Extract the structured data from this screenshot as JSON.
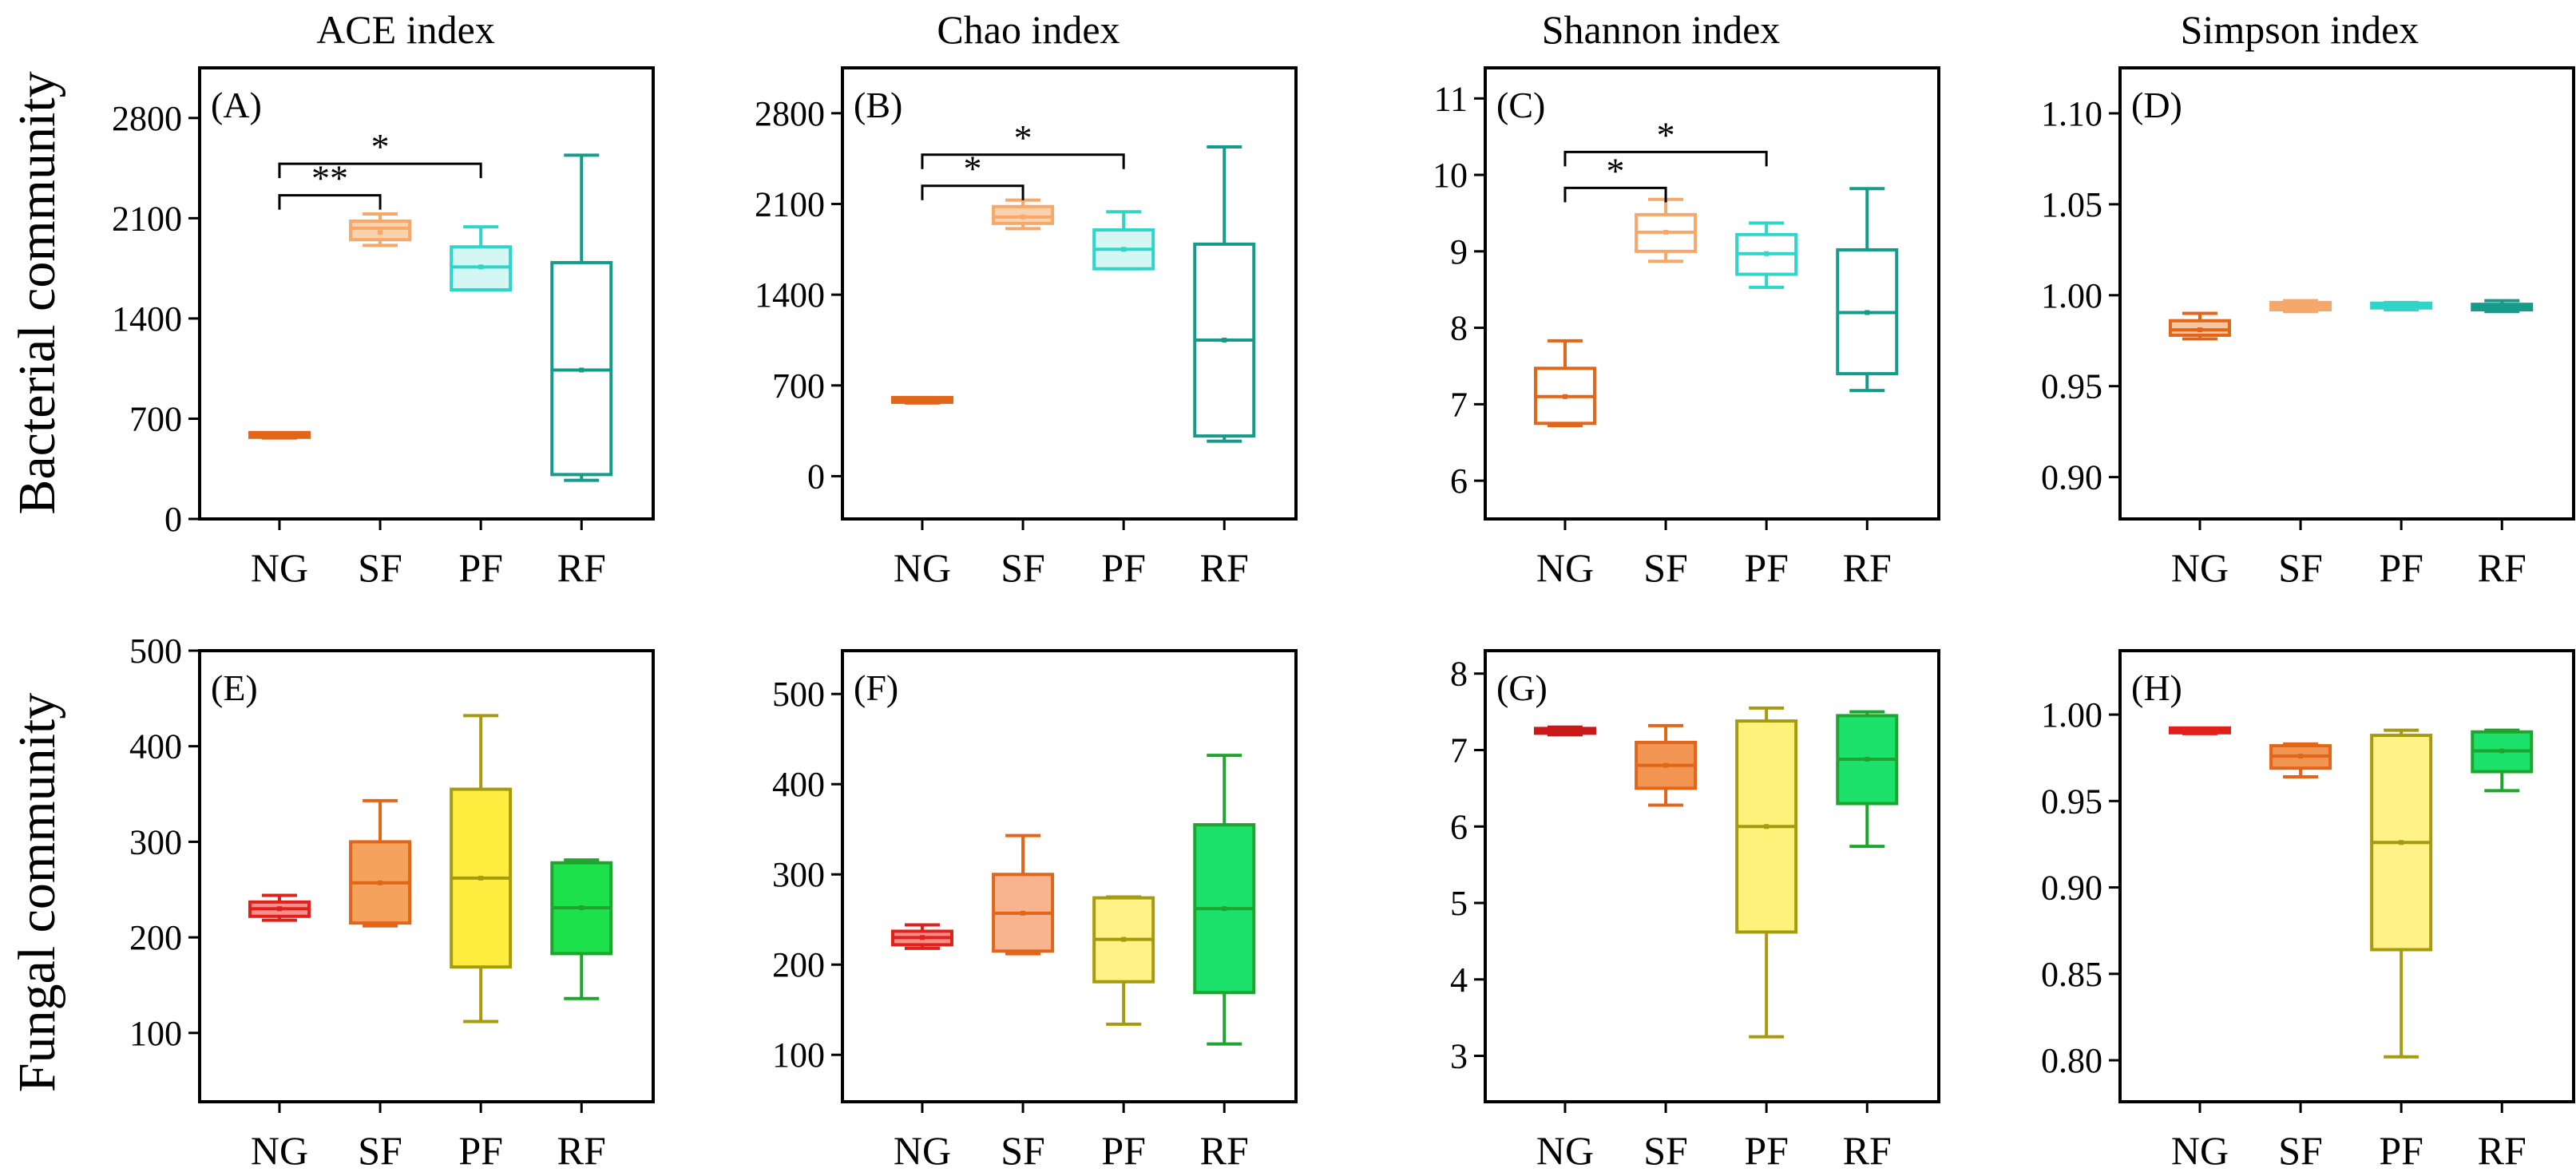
{
  "column_titles": [
    "ACE index",
    "Chao index",
    "Shannon index",
    "Simpson index"
  ],
  "row_titles": [
    "Bacterial community",
    "Fungal community"
  ],
  "chart_data": [
    {
      "id": "A",
      "label": "(A)",
      "type": "boxplot",
      "row": 0,
      "col": 0,
      "ylim": [
        0,
        3150
      ],
      "yticks": [
        0,
        700,
        1400,
        2100,
        2800
      ],
      "categories": [
        "NG",
        "SF",
        "PF",
        "RF"
      ],
      "boxes": [
        {
          "cat": "NG",
          "min": 565,
          "q1": 570,
          "median": 575,
          "q3": 585,
          "max": 590,
          "mean": 575,
          "color": "#E2661A",
          "fill": "#E2661A"
        },
        {
          "cat": "SF",
          "min": 1910,
          "q1": 1950,
          "median": 2030,
          "q3": 2080,
          "max": 2130,
          "mean": 2000,
          "color": "#F5A86A",
          "fill": "#FAD3AE"
        },
        {
          "cat": "PF",
          "min": 1600,
          "q1": 1600,
          "median": 1760,
          "q3": 1900,
          "max": 2040,
          "mean": 1760,
          "color": "#2FD5C8",
          "fill": "#D4F7F3"
        },
        {
          "cat": "RF",
          "min": 270,
          "q1": 310,
          "median": 1040,
          "q3": 1790,
          "max": 2540,
          "mean": 1040,
          "color": "#169B8B",
          "fill": "#ffffff"
        }
      ],
      "significance": [
        {
          "from": "NG",
          "to": "SF",
          "label": "**",
          "level": 2260
        },
        {
          "from": "NG",
          "to": "PF",
          "label": "*",
          "level": 2480
        }
      ]
    },
    {
      "id": "B",
      "label": "(B)",
      "type": "boxplot",
      "row": 0,
      "col": 1,
      "ylim": [
        -330,
        3150
      ],
      "yticks": [
        0,
        700,
        1400,
        2100,
        2800
      ],
      "categories": [
        "NG",
        "SF",
        "PF",
        "RF"
      ],
      "boxes": [
        {
          "cat": "NG",
          "min": 565,
          "q1": 570,
          "median": 575,
          "q3": 585,
          "max": 590,
          "mean": 575,
          "color": "#E2661A",
          "fill": "#E2661A"
        },
        {
          "cat": "SF",
          "min": 1910,
          "q1": 1950,
          "median": 2000,
          "q3": 2080,
          "max": 2130,
          "mean": 2000,
          "color": "#F5A86A",
          "fill": "#FAD3AE"
        },
        {
          "cat": "PF",
          "min": 1600,
          "q1": 1600,
          "median": 1750,
          "q3": 1900,
          "max": 2040,
          "mean": 1750,
          "color": "#2FD5C8",
          "fill": "#D4F7F3"
        },
        {
          "cat": "RF",
          "min": 270,
          "q1": 310,
          "median": 1050,
          "q3": 1790,
          "max": 2540,
          "mean": 1050,
          "color": "#169B8B",
          "fill": "#ffffff"
        }
      ],
      "significance": [
        {
          "from": "NG",
          "to": "SF",
          "label": "*",
          "level": 2240
        },
        {
          "from": "NG",
          "to": "PF",
          "label": "*",
          "level": 2480
        }
      ]
    },
    {
      "id": "C",
      "label": "(C)",
      "type": "boxplot",
      "row": 0,
      "col": 2,
      "ylim": [
        5.5,
        11.4
      ],
      "yticks": [
        6,
        7,
        8,
        9,
        10,
        11
      ],
      "categories": [
        "NG",
        "SF",
        "PF",
        "RF"
      ],
      "boxes": [
        {
          "cat": "NG",
          "min": 6.72,
          "q1": 6.75,
          "median": 7.1,
          "q3": 7.47,
          "max": 7.83,
          "mean": 7.1,
          "color": "#E2661A",
          "fill": "#ffffff"
        },
        {
          "cat": "SF",
          "min": 8.87,
          "q1": 9.0,
          "median": 9.25,
          "q3": 9.48,
          "max": 9.68,
          "mean": 9.25,
          "color": "#F5A86A",
          "fill": "#ffffff"
        },
        {
          "cat": "PF",
          "min": 8.53,
          "q1": 8.7,
          "median": 8.97,
          "q3": 9.22,
          "max": 9.37,
          "mean": 8.97,
          "color": "#2FD5C8",
          "fill": "#ffffff"
        },
        {
          "cat": "RF",
          "min": 7.18,
          "q1": 7.4,
          "median": 8.2,
          "q3": 9.02,
          "max": 9.82,
          "mean": 8.2,
          "color": "#169B8B",
          "fill": "#ffffff"
        }
      ],
      "significance": [
        {
          "from": "NG",
          "to": "SF",
          "label": "*",
          "level": 9.83
        },
        {
          "from": "NG",
          "to": "PF",
          "label": "*",
          "level": 10.3
        }
      ]
    },
    {
      "id": "D",
      "label": "(D)",
      "type": "boxplot",
      "row": 0,
      "col": 3,
      "ylim": [
        0.877,
        1.125
      ],
      "yticks": [
        0.9,
        0.95,
        1.0,
        1.05,
        1.1
      ],
      "ytick_labels": [
        "0.90",
        "0.95",
        "1.00",
        "1.05",
        "1.10"
      ],
      "categories": [
        "NG",
        "SF",
        "PF",
        "RF"
      ],
      "boxes": [
        {
          "cat": "NG",
          "min": 0.976,
          "q1": 0.978,
          "median": 0.981,
          "q3": 0.986,
          "max": 0.99,
          "mean": 0.981,
          "color": "#E2661A",
          "fill": "#F5C6A0"
        },
        {
          "cat": "SF",
          "min": 0.991,
          "q1": 0.992,
          "median": 0.994,
          "q3": 0.996,
          "max": 0.997,
          "mean": 0.994,
          "color": "#F5A86A",
          "fill": "#F5A86A"
        },
        {
          "cat": "PF",
          "min": 0.992,
          "q1": 0.993,
          "median": 0.994,
          "q3": 0.995,
          "max": 0.996,
          "mean": 0.994,
          "color": "#2FD5C8",
          "fill": "#2FD5C8"
        },
        {
          "cat": "RF",
          "min": 0.991,
          "q1": 0.992,
          "median": 0.993,
          "q3": 0.995,
          "max": 0.997,
          "mean": 0.993,
          "color": "#169B8B",
          "fill": "#169B8B"
        }
      ],
      "significance": []
    },
    {
      "id": "E",
      "label": "(E)",
      "type": "boxplot",
      "row": 1,
      "col": 0,
      "ylim": [
        28,
        500
      ],
      "yticks": [
        100,
        200,
        300,
        400,
        500
      ],
      "categories": [
        "NG",
        "SF",
        "PF",
        "RF"
      ],
      "boxes": [
        {
          "cat": "NG",
          "min": 218,
          "q1": 222,
          "median": 230,
          "q3": 237,
          "max": 244,
          "mean": 230,
          "color": "#E0201B",
          "fill": "#F7908D"
        },
        {
          "cat": "SF",
          "min": 212,
          "q1": 215,
          "median": 257,
          "q3": 300,
          "max": 343,
          "mean": 257,
          "color": "#E2661A",
          "fill": "#F5A25C"
        },
        {
          "cat": "PF",
          "min": 112,
          "q1": 169,
          "median": 262,
          "q3": 355,
          "max": 432,
          "mean": 262,
          "color": "#A69B0E",
          "fill": "#FFEE40"
        },
        {
          "cat": "RF",
          "min": 136,
          "q1": 183,
          "median": 231,
          "q3": 278,
          "max": 281,
          "mean": 231,
          "color": "#1FA52F",
          "fill": "#1CE14A"
        }
      ],
      "significance": []
    },
    {
      "id": "F",
      "label": "(F)",
      "type": "boxplot",
      "row": 1,
      "col": 1,
      "ylim": [
        48,
        548
      ],
      "yticks": [
        100,
        200,
        300,
        400,
        500
      ],
      "categories": [
        "NG",
        "SF",
        "PF",
        "RF"
      ],
      "boxes": [
        {
          "cat": "NG",
          "min": 218,
          "q1": 222,
          "median": 230,
          "q3": 237,
          "max": 244,
          "mean": 230,
          "color": "#E0201B",
          "fill": "#F7908D"
        },
        {
          "cat": "SF",
          "min": 212,
          "q1": 215,
          "median": 257,
          "q3": 300,
          "max": 343,
          "mean": 257,
          "color": "#E2661A",
          "fill": "#F7B48E"
        },
        {
          "cat": "PF",
          "min": 134,
          "q1": 181,
          "median": 228,
          "q3": 274,
          "max": 275,
          "mean": 228,
          "color": "#A69B0E",
          "fill": "#FFF287"
        },
        {
          "cat": "RF",
          "min": 112,
          "q1": 169,
          "median": 262,
          "q3": 355,
          "max": 432,
          "mean": 262,
          "color": "#1FA52F",
          "fill": "#1CE16A"
        }
      ],
      "significance": []
    },
    {
      "id": "G",
      "label": "(G)",
      "type": "boxplot",
      "row": 1,
      "col": 2,
      "ylim": [
        2.4,
        8.3
      ],
      "yticks": [
        3,
        4,
        5,
        6,
        7,
        8
      ],
      "categories": [
        "NG",
        "SF",
        "PF",
        "RF"
      ],
      "boxes": [
        {
          "cat": "NG",
          "min": 7.2,
          "q1": 7.22,
          "median": 7.25,
          "q3": 7.28,
          "max": 7.3,
          "mean": 7.25,
          "color": "#C81818",
          "fill": "#D93030"
        },
        {
          "cat": "SF",
          "min": 6.28,
          "q1": 6.5,
          "median": 6.8,
          "q3": 7.1,
          "max": 7.32,
          "mean": 6.8,
          "color": "#E2661A",
          "fill": "#F29452"
        },
        {
          "cat": "PF",
          "min": 3.25,
          "q1": 4.62,
          "median": 6.0,
          "q3": 7.38,
          "max": 7.55,
          "mean": 6.0,
          "color": "#A69B0E",
          "fill": "#FFF27A"
        },
        {
          "cat": "RF",
          "min": 5.74,
          "q1": 6.3,
          "median": 6.88,
          "q3": 7.45,
          "max": 7.5,
          "mean": 6.88,
          "color": "#1FA52F",
          "fill": "#1CE16A"
        }
      ],
      "significance": []
    },
    {
      "id": "H",
      "label": "(H)",
      "type": "boxplot",
      "row": 1,
      "col": 3,
      "ylim": [
        0.776,
        1.037
      ],
      "yticks": [
        0.8,
        0.85,
        0.9,
        0.95,
        1.0
      ],
      "ytick_labels": [
        "0.80",
        "0.85",
        "0.90",
        "0.95",
        "1.00"
      ],
      "categories": [
        "NG",
        "SF",
        "PF",
        "RF"
      ],
      "boxes": [
        {
          "cat": "NG",
          "min": 0.989,
          "q1": 0.9895,
          "median": 0.99,
          "q3": 0.9905,
          "max": 0.991,
          "mean": 0.99,
          "color": "#E0201B",
          "fill": "#E0201B"
        },
        {
          "cat": "SF",
          "min": 0.964,
          "q1": 0.969,
          "median": 0.976,
          "q3": 0.982,
          "max": 0.983,
          "mean": 0.976,
          "color": "#E2661A",
          "fill": "#F29452"
        },
        {
          "cat": "PF",
          "min": 0.802,
          "q1": 0.864,
          "median": 0.926,
          "q3": 0.988,
          "max": 0.991,
          "mean": 0.926,
          "color": "#A69B0E",
          "fill": "#FFF287"
        },
        {
          "cat": "RF",
          "min": 0.956,
          "q1": 0.967,
          "median": 0.979,
          "q3": 0.99,
          "max": 0.991,
          "mean": 0.979,
          "color": "#1FA52F",
          "fill": "#1CE16A"
        }
      ],
      "significance": []
    }
  ]
}
